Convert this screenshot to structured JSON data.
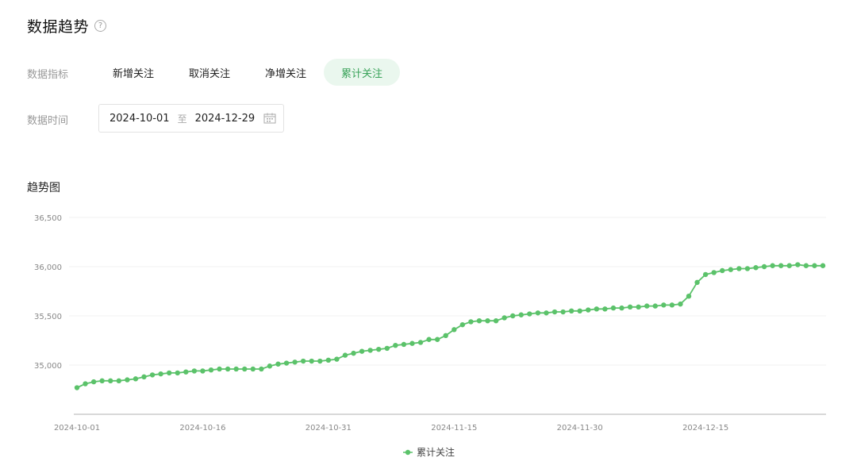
{
  "header": {
    "title": "数据趋势",
    "help_icon": "question-circle-icon",
    "help_symbol": "?"
  },
  "filters": {
    "metric_label": "数据指标",
    "tabs": [
      {
        "label": "新增关注",
        "active": false
      },
      {
        "label": "取消关注",
        "active": false
      },
      {
        "label": "净增关注",
        "active": false
      },
      {
        "label": "累计关注",
        "active": true
      }
    ],
    "time_label": "数据时间",
    "start_date": "2024-10-01",
    "date_separator": "至",
    "end_date": "2024-12-29",
    "calendar_icon": "calendar-icon"
  },
  "colors": {
    "accent": "#3aa35a",
    "series": "#5bc26a",
    "active_tab_bg": "#eaf7ee",
    "grid": "#f1f1f1",
    "axis": "#cccccc"
  },
  "chart_data": {
    "type": "line",
    "title": "趋势图",
    "xlabel": "",
    "ylabel": "",
    "x_ticks": [
      "2024-10-01",
      "2024-10-16",
      "2024-10-31",
      "2024-11-15",
      "2024-11-30",
      "2024-12-15"
    ],
    "y_ticks": [
      35000,
      35500,
      36000,
      36500
    ],
    "y_tick_labels": [
      "35,000",
      "35,500",
      "36,000",
      "36,500"
    ],
    "ylim": [
      34500,
      36500
    ],
    "grid": true,
    "legend": "bottom-center",
    "series": [
      {
        "name": "累计关注",
        "start_date": "2024-10-01",
        "values": [
          34770,
          34810,
          34830,
          34840,
          34840,
          34840,
          34850,
          34860,
          34880,
          34900,
          34910,
          34920,
          34920,
          34930,
          34940,
          34940,
          34950,
          34960,
          34960,
          34960,
          34960,
          34960,
          34960,
          34990,
          35010,
          35020,
          35030,
          35040,
          35040,
          35040,
          35050,
          35060,
          35100,
          35120,
          35140,
          35150,
          35160,
          35170,
          35200,
          35210,
          35220,
          35230,
          35260,
          35260,
          35300,
          35360,
          35410,
          35440,
          35450,
          35450,
          35450,
          35480,
          35500,
          35510,
          35520,
          35530,
          35530,
          35540,
          35540,
          35550,
          35550,
          35560,
          35570,
          35570,
          35580,
          35580,
          35590,
          35590,
          35600,
          35600,
          35610,
          35610,
          35620,
          35700,
          35840,
          35920,
          35940,
          35960,
          35970,
          35980,
          35980,
          35990,
          36000,
          36010,
          36010,
          36010,
          36020,
          36010,
          36010,
          36010
        ]
      }
    ]
  }
}
